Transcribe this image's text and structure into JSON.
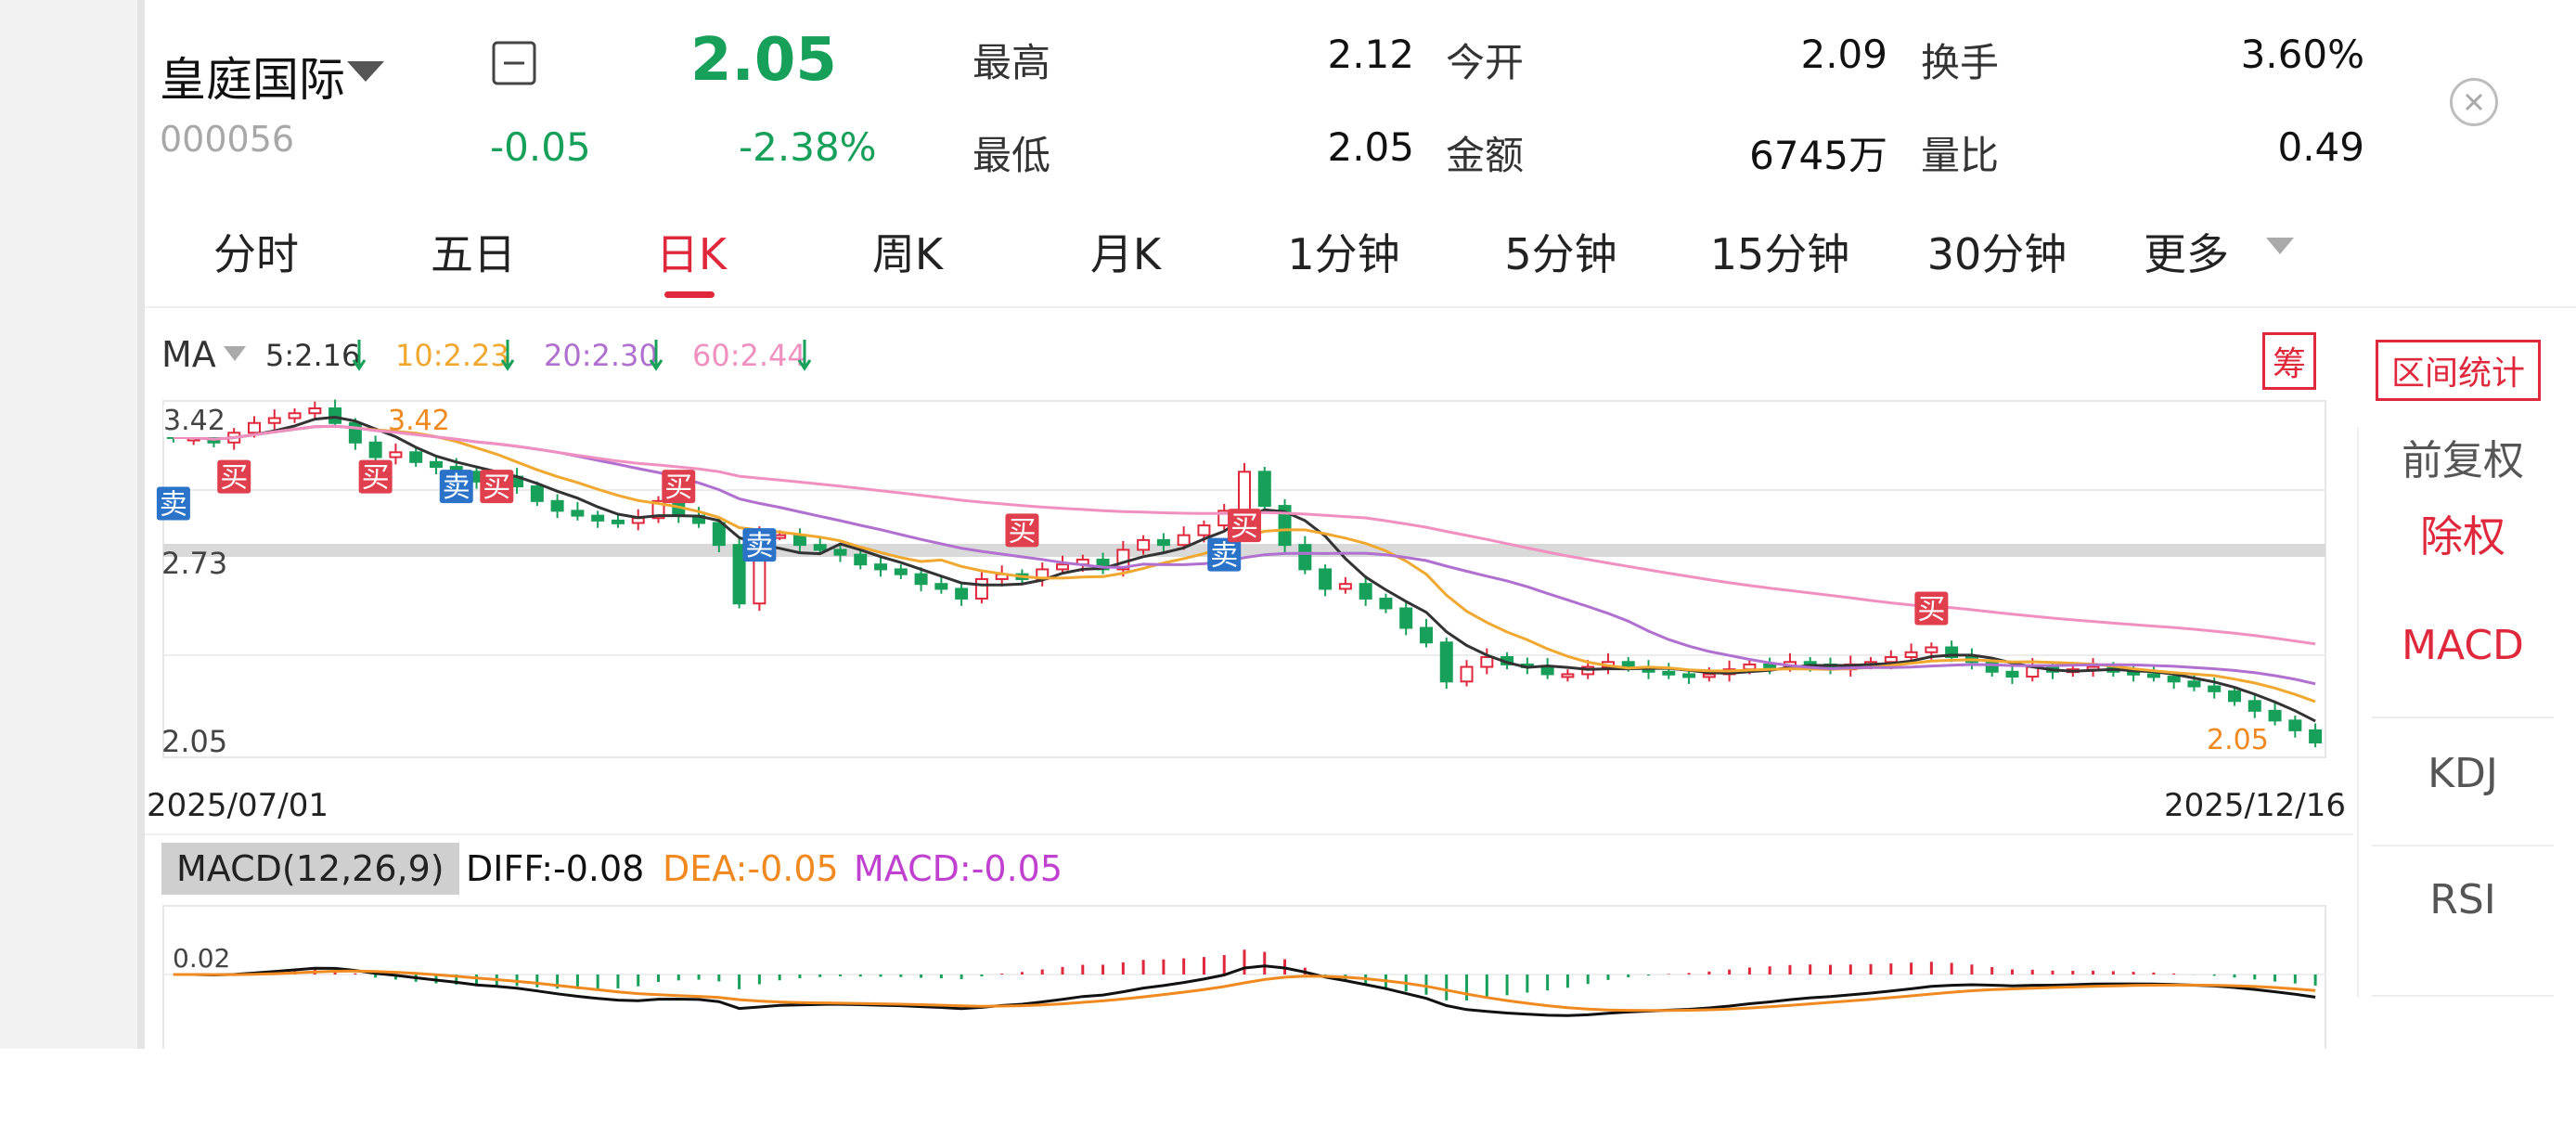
{
  "quote": {
    "name": "皇庭国际",
    "code": "000056",
    "price": "2.05",
    "change": "-0.05",
    "change_pct": "-2.38%",
    "high_label": "最高",
    "high": "2.12",
    "low_label": "最低",
    "low": "2.05",
    "open_label": "今开",
    "open": "2.09",
    "amount_label": "金额",
    "amount": "6745万",
    "turnover_label": "换手",
    "turnover": "3.60%",
    "vol_ratio_label": "量比",
    "vol_ratio": "0.49"
  },
  "tabs": [
    {
      "label": "分时"
    },
    {
      "label": "五日"
    },
    {
      "label": "日K"
    },
    {
      "label": "周K"
    },
    {
      "label": "月K"
    },
    {
      "label": "1分钟"
    },
    {
      "label": "5分钟"
    },
    {
      "label": "15分钟"
    },
    {
      "label": "30分钟"
    },
    {
      "label": "更多"
    }
  ],
  "active_tab": "日K",
  "ma": {
    "label": "MA",
    "ma5": "5:2.16",
    "ma10": "10:2.23",
    "ma20": "20:2.30",
    "ma60": "60:2.44",
    "colors": {
      "ma5": "#333333",
      "ma10": "#f0a830",
      "ma20": "#b070d0",
      "ma60": "#f090c0"
    }
  },
  "chip_label": "筹",
  "range_stats_label": "区间统计",
  "right_panel": [
    "前复权",
    "除权",
    "MACD",
    "KDJ",
    "RSI"
  ],
  "price_chart": {
    "y_labels": [
      "2.73",
      "2.05"
    ],
    "top_partial_label": "3.42",
    "max_label": "3.42",
    "min_label": "2.05",
    "date_start": "2025/07/01",
    "date_end": "2025/12/16",
    "buy_label": "买",
    "sell_label": "卖"
  },
  "macd": {
    "tag": "MACD(12,26,9)",
    "diff": "DIFF:-0.08",
    "dea": "DEA:-0.05",
    "macd": "MACD:-0.05",
    "axis_label": "0.02",
    "colors": {
      "diff": "#111111",
      "dea": "#f08a20",
      "macd": "#c040d0",
      "up": "#e0283c",
      "down": "#16a05a"
    }
  },
  "chart_data": [
    {
      "type": "candlestick",
      "title": "",
      "x_range": [
        "2025/07/01",
        "2025/12/16"
      ],
      "ylim": [
        2.05,
        3.42
      ],
      "y_ticks": [
        2.73,
        2.05
      ],
      "close_approx": [
        3.3,
        3.3,
        3.28,
        3.32,
        3.36,
        3.38,
        3.4,
        3.42,
        3.36,
        3.28,
        3.22,
        3.24,
        3.2,
        3.18,
        3.16,
        3.12,
        3.14,
        3.1,
        3.04,
        3.0,
        2.98,
        2.96,
        2.95,
        2.97,
        3.04,
        2.98,
        2.95,
        2.86,
        2.62,
        2.9,
        2.9,
        2.86,
        2.84,
        2.82,
        2.78,
        2.76,
        2.74,
        2.7,
        2.68,
        2.64,
        2.72,
        2.74,
        2.72,
        2.76,
        2.78,
        2.8,
        2.76,
        2.84,
        2.88,
        2.86,
        2.9,
        2.94,
        3.0,
        3.16,
        3.02,
        2.86,
        2.76,
        2.68,
        2.7,
        2.64,
        2.6,
        2.52,
        2.46,
        2.3,
        2.36,
        2.4,
        2.37,
        2.36,
        2.33,
        2.33,
        2.36,
        2.38,
        2.36,
        2.34,
        2.33,
        2.32,
        2.33,
        2.35,
        2.37,
        2.36,
        2.38,
        2.37,
        2.35,
        2.37,
        2.38,
        2.4,
        2.42,
        2.44,
        2.4,
        2.38,
        2.34,
        2.32,
        2.36,
        2.34,
        2.35,
        2.36,
        2.34,
        2.33,
        2.32,
        2.3,
        2.28,
        2.26,
        2.22,
        2.18,
        2.14,
        2.1,
        2.05
      ],
      "ma_last": {
        "MA5": 2.16,
        "MA10": 2.23,
        "MA20": 2.3,
        "MA60": 2.44
      }
    },
    {
      "type": "bar",
      "title": "MACD(12,26,9)",
      "series": [
        {
          "name": "DIFF",
          "last": -0.08
        },
        {
          "name": "DEA",
          "last": -0.05
        },
        {
          "name": "MACD",
          "last": -0.05
        }
      ],
      "y_ticks": [
        0.02
      ]
    }
  ]
}
